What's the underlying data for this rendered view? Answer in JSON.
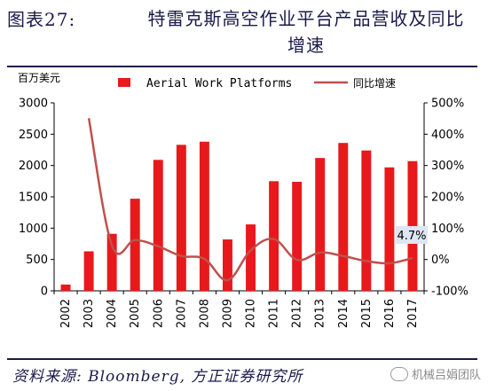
{
  "header": {
    "fig_number": "图表27:",
    "title": "特雷克斯高空作业平台产品营收及同比增速"
  },
  "footer": {
    "source": "资料来源: Bloomberg, 方正证券研究所",
    "watermark": "机械吕娟团队",
    "watermark_icon": "wechat-icon"
  },
  "chart_data": {
    "type": "bar",
    "categories": [
      "2002",
      "2003",
      "2004",
      "2005",
      "2006",
      "2007",
      "2008",
      "2009",
      "2010",
      "2011",
      "2012",
      "2013",
      "2014",
      "2015",
      "2016",
      "2017"
    ],
    "series": [
      {
        "name": "Aerial Work Platforms",
        "type": "bar",
        "axis": "left",
        "color": "#e8191c",
        "values": [
          100,
          630,
          910,
          1470,
          2090,
          2330,
          2380,
          820,
          1060,
          1750,
          1740,
          2120,
          2360,
          2240,
          1970,
          2070
        ]
      },
      {
        "name": "同比增速",
        "type": "line",
        "axis": "right",
        "color": "#c0504d",
        "unit": "%",
        "values": [
          null,
          451,
          45,
          62,
          42,
          11,
          2,
          -66,
          29,
          65,
          -1,
          22,
          11,
          -5,
          -12,
          4.7
        ]
      }
    ],
    "y_left": {
      "unit_label": "百万美元",
      "ylim": [
        0,
        3000
      ],
      "ticks": [
        "0",
        "500",
        "1000",
        "1500",
        "2000",
        "2500",
        "3000"
      ]
    },
    "y_right": {
      "ylim": [
        -100,
        500
      ],
      "ticks": [
        "-100%",
        "0%",
        "100%",
        "200%",
        "300%",
        "400%",
        "500%"
      ]
    },
    "annotation": {
      "text": "4.7%",
      "category": "2017",
      "series": "同比增速",
      "box_color": "#dde6f2"
    },
    "legend": {
      "placement": "top"
    },
    "grid": false
  }
}
